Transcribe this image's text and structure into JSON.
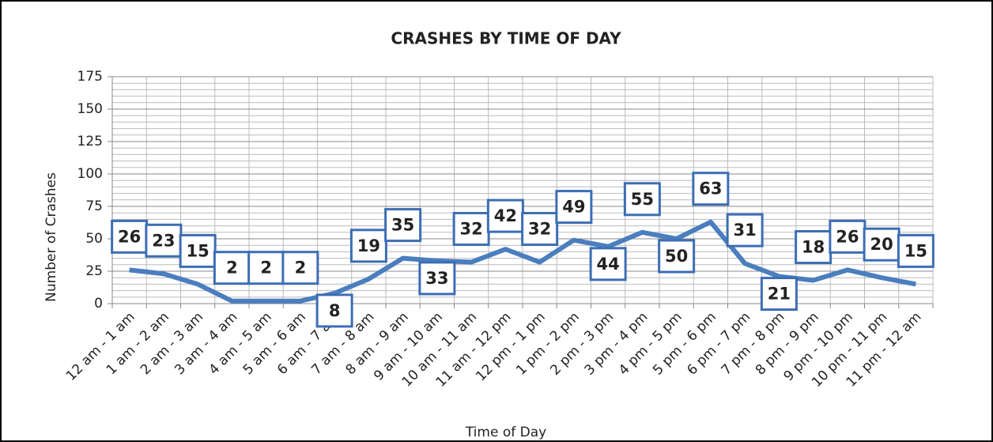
{
  "chart_data": {
    "type": "line",
    "title": "CRASHES BY TIME OF DAY",
    "x_label": "Time of Day",
    "y_label": "Number of Crashes",
    "categories": [
      "12 am - 1 am",
      "1 am - 2 am",
      "2 am - 3 am",
      "3 am - 4 am",
      "4 am - 5 am",
      "5 am - 6 am",
      "6 am - 7 am",
      "7 am - 8 am",
      "8 am - 9 am",
      "9 am - 10 am",
      "10 am - 11 am",
      "11 am - 12 pm",
      "12 pm - 1 pm",
      "1 pm - 2 pm",
      "2 pm - 3 pm",
      "3 pm - 4 pm",
      "4 pm - 5 pm",
      "5 pm - 6 pm",
      "6 pm - 7 pm",
      "7 pm - 8 pm",
      "8 pm - 9 pm",
      "9 pm - 10 pm",
      "10 pm - 11 pm",
      "11 pm - 12 am"
    ],
    "values": [
      26,
      23,
      15,
      2,
      2,
      2,
      8,
      19,
      35,
      33,
      32,
      42,
      32,
      49,
      44,
      55,
      50,
      63,
      31,
      21,
      18,
      26,
      20,
      15
    ],
    "color": "#4a7ebf",
    "ylim": [
      0,
      175
    ],
    "yticks": [
      0,
      25,
      50,
      75,
      100,
      125,
      150,
      175
    ],
    "grid": true
  }
}
